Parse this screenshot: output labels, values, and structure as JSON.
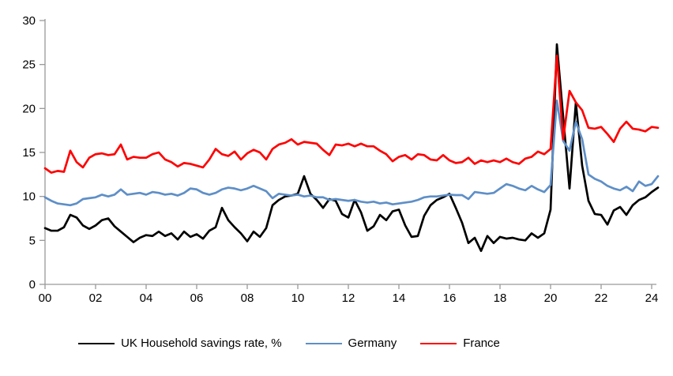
{
  "page": {
    "background": "#ffffff"
  },
  "chart_data": {
    "type": "line",
    "title": "",
    "grid": false,
    "legend_position": "bottom",
    "axis_color": "#999999",
    "text_color": "#000000",
    "x_axis": {
      "start_year": 2000,
      "end_year": 2024,
      "frequency": "quarterly",
      "tick_labels": [
        "00",
        "02",
        "04",
        "06",
        "08",
        "10",
        "12",
        "14",
        "16",
        "18",
        "20",
        "22",
        "24"
      ]
    },
    "y_axis": {
      "ticks": [
        0,
        5,
        10,
        15,
        20,
        25,
        30
      ],
      "min": 0,
      "max": 30
    },
    "series": [
      {
        "name": "UK Household savings rate, %",
        "color": "#000000",
        "values": [
          6.4,
          6.1,
          6.1,
          6.5,
          7.9,
          7.6,
          6.7,
          6.3,
          6.7,
          7.3,
          7.5,
          6.6,
          6.0,
          5.4,
          4.8,
          5.3,
          5.6,
          5.5,
          6.0,
          5.5,
          5.8,
          5.1,
          6.0,
          5.4,
          5.7,
          5.2,
          6.1,
          6.5,
          8.7,
          7.3,
          6.5,
          5.8,
          4.9,
          6.0,
          5.4,
          6.4,
          9.0,
          9.6,
          10.0,
          10.1,
          10.3,
          12.3,
          10.3,
          9.6,
          8.7,
          9.7,
          9.5,
          8.0,
          7.6,
          9.6,
          8.2,
          6.1,
          6.6,
          7.9,
          7.3,
          8.3,
          8.5,
          6.7,
          5.4,
          5.5,
          7.8,
          9.0,
          9.6,
          9.9,
          10.3,
          8.7,
          7.0,
          4.7,
          5.3,
          3.8,
          5.5,
          4.7,
          5.4,
          5.2,
          5.3,
          5.1,
          5.0,
          5.8,
          5.3,
          5.8,
          8.5,
          27.3,
          19.0,
          10.9,
          20.7,
          13.5,
          9.5,
          8.0,
          7.9,
          6.8,
          8.4,
          8.8,
          7.9,
          9.0,
          9.6,
          9.9,
          10.5,
          11.0
        ]
      },
      {
        "name": "Germany",
        "color": "#5E8FC7",
        "values": [
          9.9,
          9.5,
          9.2,
          9.1,
          9.0,
          9.2,
          9.7,
          9.8,
          9.9,
          10.2,
          10.0,
          10.2,
          10.8,
          10.2,
          10.3,
          10.4,
          10.2,
          10.5,
          10.4,
          10.2,
          10.3,
          10.1,
          10.4,
          10.9,
          10.8,
          10.4,
          10.2,
          10.4,
          10.8,
          11.0,
          10.9,
          10.7,
          10.9,
          11.2,
          10.9,
          10.6,
          9.8,
          10.3,
          10.2,
          10.1,
          10.2,
          10.0,
          10.1,
          9.9,
          9.9,
          9.6,
          9.7,
          9.6,
          9.5,
          9.6,
          9.4,
          9.3,
          9.4,
          9.2,
          9.3,
          9.1,
          9.2,
          9.3,
          9.4,
          9.6,
          9.9,
          10.0,
          10.0,
          10.1,
          10.2,
          10.15,
          10.15,
          9.7,
          10.5,
          10.4,
          10.3,
          10.4,
          10.9,
          11.4,
          11.2,
          10.9,
          10.7,
          11.2,
          10.8,
          10.5,
          11.3,
          20.9,
          16.3,
          15.2,
          18.5,
          16.5,
          12.5,
          12.0,
          11.7,
          11.2,
          10.9,
          10.7,
          11.1,
          10.6,
          11.7,
          11.2,
          11.4,
          12.3
        ]
      },
      {
        "name": "France",
        "color": "#FF0000",
        "values": [
          13.2,
          12.7,
          12.9,
          12.8,
          15.2,
          13.9,
          13.3,
          14.4,
          14.8,
          14.9,
          14.7,
          14.8,
          15.9,
          14.2,
          14.5,
          14.4,
          14.4,
          14.8,
          15.0,
          14.2,
          13.9,
          13.4,
          13.8,
          13.7,
          13.5,
          13.3,
          14.2,
          15.4,
          14.8,
          14.6,
          15.1,
          14.2,
          14.9,
          15.3,
          15.0,
          14.2,
          15.4,
          15.9,
          16.1,
          16.5,
          15.9,
          16.2,
          16.1,
          16.0,
          15.3,
          14.7,
          15.9,
          15.8,
          16.0,
          15.7,
          16.0,
          15.7,
          15.7,
          15.2,
          14.8,
          14.0,
          14.5,
          14.7,
          14.2,
          14.8,
          14.7,
          14.2,
          14.1,
          14.7,
          14.1,
          13.8,
          13.9,
          14.4,
          13.7,
          14.1,
          13.9,
          14.1,
          13.9,
          14.3,
          13.9,
          13.7,
          14.3,
          14.5,
          15.1,
          14.8,
          15.4,
          26.0,
          16.5,
          22.0,
          20.7,
          19.8,
          17.8,
          17.7,
          17.9,
          17.1,
          16.2,
          17.7,
          18.5,
          17.7,
          17.6,
          17.4,
          17.9,
          17.8
        ]
      }
    ]
  }
}
